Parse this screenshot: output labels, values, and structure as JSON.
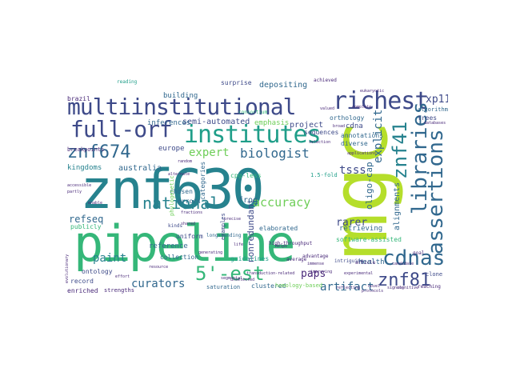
{
  "palette": {
    "purple": "#482878",
    "indigo": "#3e4a89",
    "blue": "#31688e",
    "teal": "#26828e",
    "green": "#1f9e89",
    "lime": "#35b779",
    "yellowgreen": "#6ece58",
    "chartreuse": "#b5de2b",
    "yellow": "#c8d83a"
  },
  "words": {
    "znf630": "znf630",
    "pipeline": "pipeline",
    "mgc": "mgc",
    "multiinstitutional": "multiinstitutional",
    "richest": "richest",
    "full_orf": "full-orf",
    "institutes": "institutes",
    "znf674": "znf674",
    "libraries": "libraries",
    "assertions": "assertions",
    "znf41": "znf41",
    "cdnas": "cdnas",
    "national": "national",
    "est": "5'-est",
    "znf81": "znf81",
    "biologist": "biologist",
    "expert": "expert",
    "accuracy": "accuracy",
    "paint": "paint",
    "curators": "curators",
    "artifact": "artifact",
    "refseq": "refseq",
    "paps": "paps",
    "tsss": "tsss",
    "rarer": "rarer",
    "xp11": "xp11",
    "explicit": "explicit",
    "oligo_cap": "oligo-cap",
    "semi_automated": "semi-automated",
    "alignments": "alignments",
    "australia": "australia",
    "kingdoms": "kingdoms",
    "nonredundant": "nonredundant",
    "software_assisted": "software-assisted",
    "health": "health",
    "project": "project",
    "retrieving": "retrieving",
    "frog": "frog",
    "reference": "reference",
    "collection": "collection",
    "guidelines": "guidelines",
    "elaborated": "elaborated",
    "cpg_less": "cpg-less",
    "emphasis": "emphasis",
    "depositing": "depositing",
    "inferences": "inferences",
    "europe": "europe",
    "chosen": "chosen",
    "errors": "errors",
    "uniform": "uniform",
    "publicly": "publicly",
    "building": "building",
    "surprise": "surprise",
    "brazil": "brazil",
    "cdna": "cdna",
    "annotations": "annotations",
    "diverse": "diverse",
    "sequences": "sequences",
    "orthology": "orthology",
    "trees": "trees",
    "algorithms": "algorithms",
    "ontology": "ontology",
    "record": "record",
    "enriched": "enriched",
    "strengths": "strengths",
    "clustered": "clustered",
    "homology_based": "homology-based",
    "saturation": "saturation",
    "clone": "clone",
    "fold": "1.5-fold",
    "breakpoints": "breakpoints",
    "achieved": "achieved",
    "consortium": "consortium",
    "reading": "reading",
    "article": "article",
    "kinds": "kinds",
    "longstanding": "longstanding",
    "phylogenetic": "phylogenetic",
    "examples": "examples",
    "categories": "categories",
    "high_throughput": "high-throughput",
    "advantage": "advantage",
    "intriguing": "intriguing",
    "goal": "goal",
    "reaching": "reaching",
    "database": "databases",
    "average": "average",
    "generating": "generating",
    "effort": "effort",
    "life": "life",
    "helps": "helps",
    "partly": "partly",
    "enable": "enable",
    "random": "random",
    "selection": "selection",
    "shared": "shared",
    "precise": "precise",
    "alternate": "alternate",
    "unselected": "unselected",
    "resource": "resource",
    "transduction": "transduction-related",
    "segmental": "segmental",
    "novel": "novel",
    "eukaryotic": "eukaryotic",
    "signals": "signals",
    "cognitive": "cognitive",
    "reflecting": "reflecting",
    "protocols": "protocols",
    "candidate": "candidate",
    "accessible": "accessible",
    "evolutionary": "evolutionary",
    "applications": "applications",
    "complete": "complete",
    "valued": "valued",
    "experimental": "experimental",
    "broad": "broad",
    "immense": "immense",
    "fractions": "fractions",
    "improving": "improving"
  }
}
